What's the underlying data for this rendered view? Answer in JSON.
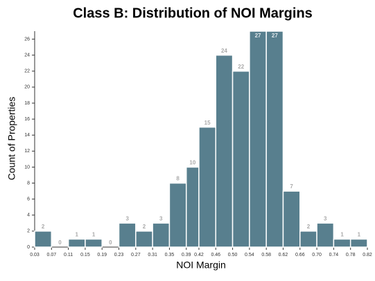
{
  "chart_data": {
    "type": "histogram",
    "title": "Class B: Distribution of  NOI Margins",
    "x_label": "NOI Margin",
    "y_label": "Count of Properties",
    "bins": [
      0.03,
      0.07,
      0.11,
      0.15,
      0.19,
      0.23,
      0.27,
      0.31,
      0.35,
      0.39,
      0.42,
      0.46,
      0.5,
      0.54,
      0.58,
      0.62,
      0.66,
      0.7,
      0.74,
      0.78,
      0.82
    ],
    "values": [
      2,
      0,
      1,
      1,
      0,
      3,
      2,
      3,
      8,
      10,
      15,
      24,
      22,
      27,
      27,
      7,
      2,
      3,
      1,
      1
    ],
    "color": "#587f8e",
    "xlim": [
      0.03,
      0.82
    ],
    "xticks": [
      0.03,
      0.07,
      0.11,
      0.15,
      0.19,
      0.23,
      0.27,
      0.31,
      0.35,
      0.39,
      0.42,
      0.46,
      {
        "value": 0.5,
        "label": "0.50"
      },
      0.54,
      0.58,
      0.62,
      0.66,
      {
        "value": 0.7,
        "label": "0.70"
      },
      0.74,
      0.78,
      0.82
    ],
    "ylim": [
      0,
      27
    ],
    "yticks": [
      0,
      2,
      4,
      6,
      8,
      10,
      12,
      14,
      16,
      18,
      20,
      22,
      24,
      26
    ],
    "grid": false
  }
}
